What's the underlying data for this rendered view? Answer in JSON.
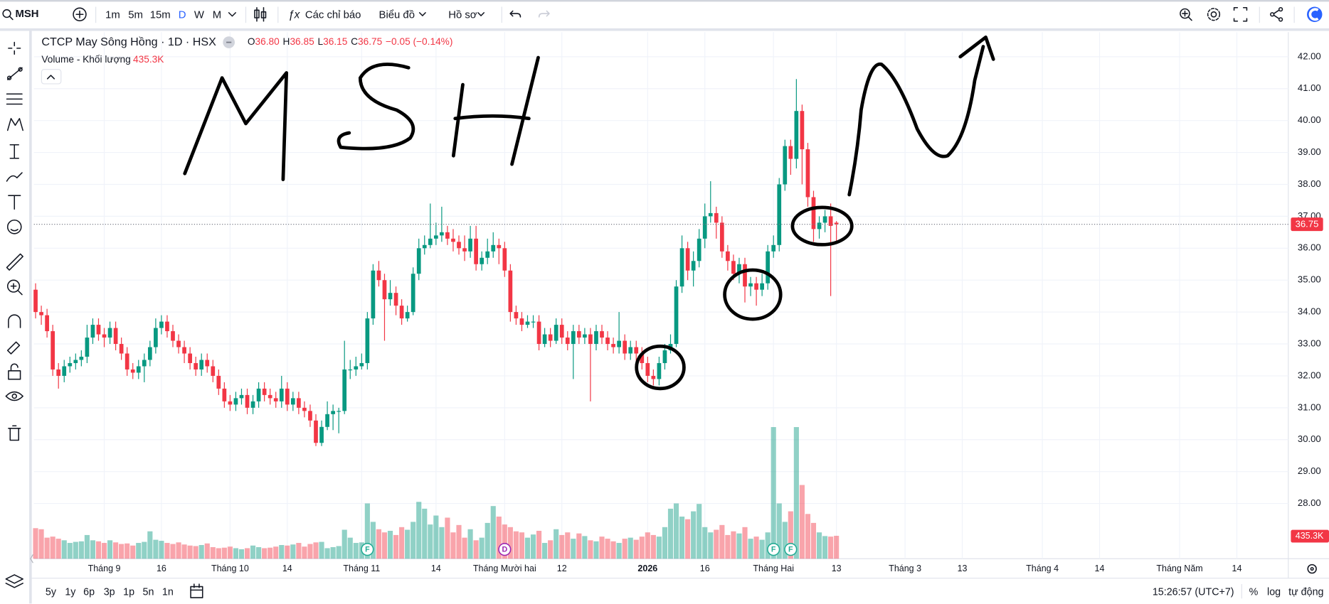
{
  "toolbar": {
    "symbol": "MSH",
    "intervals": [
      "1m",
      "5m",
      "15m",
      "D",
      "W",
      "M"
    ],
    "menus": [
      "Các chỉ báo",
      "Biểu đồ",
      "Hồ sơ"
    ]
  },
  "chart_data": {
    "type": "candlestick",
    "title": "CTCP May Sông Hồng · 1D · HSX",
    "ohlc_legend": [
      {
        "key": "O",
        "value": "36.80"
      },
      {
        "key": "H",
        "value": "36.85"
      },
      {
        "key": "L",
        "value": "36.15"
      },
      {
        "key": "C",
        "value": "36.75"
      }
    ],
    "change": "−0.05 (−0.14%)",
    "volume_title": "Volume - Khối lượng",
    "open": [
      34.7,
      34.0,
      33.9,
      33.4,
      32.2,
      32.0,
      32.3,
      32.4,
      32.5,
      32.6,
      33.2,
      33.6,
      33.3,
      33.2,
      33.5,
      33.0,
      32.7,
      32.2,
      32.1,
      32.3,
      32.5,
      32.9,
      33.5,
      33.7,
      33.4,
      33.1,
      32.9,
      32.7,
      32.4,
      32.2,
      32.5,
      32.3,
      32.0,
      31.6,
      31.2,
      31.1,
      31.3,
      31.4,
      31.0,
      31.2,
      31.6,
      31.4,
      31.3,
      31.2,
      31.6,
      31.1,
      31.3,
      31.0,
      30.9,
      30.6,
      29.9,
      30.4,
      30.8,
      30.9,
      30.9,
      32.2,
      32.2,
      32.3,
      32.4,
      33.8,
      35.3,
      35.0,
      34.4,
      34.6,
      34.2,
      33.8,
      34.0,
      35.2,
      36.0,
      36.1,
      36.3,
      36.4,
      36.5,
      36.3,
      36.2,
      36.0,
      35.9,
      36.3,
      35.5,
      35.7,
      35.9,
      36.1,
      36.0,
      35.3,
      34.0,
      33.8,
      33.6,
      33.7,
      33.7,
      33.0,
      33.3,
      33.1,
      33.6,
      33.2,
      33.0,
      33.4,
      33.2,
      33.3,
      33.0,
      33.4,
      33.2,
      33.0,
      32.9,
      33.1,
      32.7,
      32.9,
      32.7,
      32.4,
      32.0,
      31.9,
      32.4,
      32.8,
      33.0,
      34.8,
      36.0,
      35.3,
      35.6,
      36.3,
      37.0,
      37.1,
      36.8,
      35.9,
      35.6,
      35.2,
      35.5,
      34.8,
      34.9,
      34.7,
      34.9,
      35.9,
      36.1,
      38.0,
      39.2,
      38.8,
      40.3,
      39.1,
      37.6,
      36.6,
      36.8,
      37.0,
      36.8
    ],
    "high": [
      34.9,
      34.2,
      34.1,
      33.6,
      32.4,
      32.5,
      32.6,
      32.7,
      32.8,
      33.6,
      33.8,
      33.8,
      33.5,
      33.7,
      33.7,
      33.2,
      32.9,
      32.4,
      32.5,
      32.7,
      33.1,
      33.8,
      33.9,
      33.9,
      33.6,
      33.3,
      33.1,
      32.9,
      32.6,
      32.7,
      32.7,
      32.5,
      32.2,
      31.8,
      31.4,
      31.5,
      31.6,
      31.6,
      31.4,
      31.8,
      31.8,
      31.6,
      31.5,
      32.0,
      31.8,
      31.5,
      31.5,
      31.2,
      31.1,
      30.8,
      30.6,
      31.2,
      31.1,
      31.0,
      33.1,
      32.5,
      32.6,
      32.7,
      34.0,
      35.5,
      35.6,
      35.2,
      35.0,
      34.8,
      34.4,
      34.2,
      35.4,
      36.3,
      36.4,
      37.4,
      36.8,
      37.3,
      36.7,
      36.6,
      36.4,
      36.4,
      36.7,
      36.7,
      35.9,
      36.3,
      36.5,
      36.3,
      36.2,
      35.5,
      34.2,
      34.0,
      33.9,
      33.9,
      33.9,
      33.5,
      33.5,
      33.8,
      33.8,
      33.4,
      33.6,
      33.6,
      33.5,
      33.5,
      33.6,
      33.6,
      33.4,
      33.2,
      34.0,
      33.3,
      33.1,
      33.1,
      32.9,
      32.6,
      32.2,
      32.6,
      33.0,
      33.3,
      35.0,
      36.4,
      36.2,
      35.9,
      36.6,
      37.4,
      38.1,
      37.3,
      37.0,
      36.1,
      35.8,
      35.7,
      35.7,
      35.1,
      35.1,
      35.2,
      36.1,
      36.4,
      38.2,
      39.4,
      39.4,
      41.3,
      40.5,
      39.3,
      37.8,
      37.0,
      37.2,
      37.4,
      36.85
    ],
    "low": [
      33.8,
      33.6,
      33.2,
      32.0,
      31.6,
      31.8,
      32.1,
      32.2,
      32.3,
      32.4,
      33.0,
      33.1,
      32.9,
      33.0,
      32.8,
      32.5,
      32.0,
      31.9,
      31.9,
      31.8,
      32.3,
      32.7,
      33.3,
      33.2,
      32.9,
      32.7,
      32.4,
      32.2,
      32.0,
      32.0,
      32.1,
      31.8,
      31.4,
      31.0,
      30.9,
      30.9,
      31.1,
      30.8,
      30.8,
      31.0,
      31.2,
      31.1,
      31.0,
      31.0,
      30.9,
      30.9,
      30.8,
      30.7,
      30.4,
      29.8,
      29.8,
      30.3,
      30.3,
      30.2,
      30.8,
      31.9,
      32.0,
      32.2,
      32.2,
      33.6,
      34.8,
      33.1,
      34.2,
      33.9,
      33.6,
      33.7,
      33.9,
      35.0,
      35.8,
      36.0,
      36.1,
      36.2,
      36.1,
      35.9,
      35.8,
      35.6,
      35.7,
      35.3,
      35.3,
      35.5,
      35.7,
      35.5,
      35.1,
      33.7,
      33.6,
      33.4,
      33.5,
      33.5,
      32.8,
      32.9,
      32.9,
      33.0,
      33.0,
      32.8,
      31.9,
      33.0,
      33.0,
      31.2,
      32.8,
      33.0,
      32.8,
      32.7,
      32.7,
      32.5,
      32.5,
      32.4,
      32.2,
      31.8,
      31.7,
      31.7,
      32.2,
      32.7,
      32.9,
      34.6,
      35.0,
      34.8,
      35.4,
      36.0,
      36.8,
      36.3,
      35.7,
      35.3,
      35.0,
      34.9,
      34.3,
      34.5,
      34.2,
      34.5,
      34.7,
      35.7,
      35.9,
      37.8,
      38.3,
      38.5,
      38.0,
      37.3,
      36.2,
      36.3,
      36.5,
      34.5,
      36.15
    ],
    "close": [
      34.0,
      33.9,
      33.4,
      32.2,
      32.0,
      32.3,
      32.4,
      32.5,
      32.6,
      33.2,
      33.6,
      33.3,
      33.2,
      33.5,
      33.0,
      32.7,
      32.2,
      32.1,
      32.3,
      32.5,
      32.9,
      33.5,
      33.7,
      33.4,
      33.1,
      32.9,
      32.7,
      32.4,
      32.2,
      32.5,
      32.3,
      32.0,
      31.6,
      31.2,
      31.1,
      31.3,
      31.4,
      31.0,
      31.2,
      31.6,
      31.4,
      31.3,
      31.2,
      31.6,
      31.1,
      31.3,
      31.0,
      30.9,
      30.6,
      29.9,
      30.4,
      30.8,
      30.9,
      30.9,
      32.2,
      32.2,
      32.3,
      32.4,
      33.8,
      35.3,
      35.0,
      34.4,
      34.6,
      34.2,
      33.8,
      34.0,
      35.2,
      36.0,
      36.1,
      36.3,
      36.4,
      36.5,
      36.3,
      36.2,
      36.0,
      35.9,
      36.3,
      35.5,
      35.7,
      35.9,
      36.1,
      36.0,
      35.3,
      34.0,
      33.8,
      33.6,
      33.7,
      33.7,
      33.0,
      33.3,
      33.1,
      33.6,
      33.2,
      33.0,
      33.4,
      33.2,
      33.3,
      33.0,
      33.4,
      33.2,
      33.0,
      32.9,
      33.1,
      32.7,
      32.9,
      32.7,
      32.4,
      32.0,
      31.9,
      32.4,
      32.8,
      33.0,
      34.8,
      36.0,
      35.3,
      35.6,
      36.3,
      37.0,
      37.1,
      36.8,
      35.9,
      35.6,
      35.2,
      35.5,
      34.8,
      34.9,
      34.7,
      34.9,
      35.9,
      36.1,
      38.0,
      39.2,
      38.8,
      40.3,
      39.1,
      37.6,
      36.6,
      36.8,
      37.0,
      36.7,
      36.75
    ],
    "up_color": "#089981",
    "down_color": "#f23645",
    "volume": {
      "values": [
        580000,
        560000,
        400000,
        420000,
        380000,
        350000,
        300000,
        320000,
        330000,
        450000,
        350000,
        330000,
        300000,
        350000,
        310000,
        280000,
        290000,
        250000,
        300000,
        320000,
        520000,
        360000,
        340000,
        300000,
        280000,
        310000,
        270000,
        250000,
        240000,
        260000,
        290000,
        220000,
        200000,
        210000,
        230000,
        200000,
        180000,
        200000,
        250000,
        220000,
        200000,
        210000,
        230000,
        260000,
        250000,
        270000,
        300000,
        230000,
        280000,
        310000,
        320000,
        200000,
        220000,
        240000,
        550000,
        400000,
        300000,
        310000,
        1050000,
        700000,
        560000,
        500000,
        530000,
        450000,
        600000,
        550000,
        700000,
        1080000,
        950000,
        650000,
        820000,
        600000,
        780000,
        500000,
        640000,
        400000,
        560000,
        350000,
        400000,
        680000,
        1000000,
        800000,
        650000,
        600000,
        520000,
        500000,
        400000,
        460000,
        530000,
        300000,
        350000,
        560000,
        450000,
        500000,
        380000,
        480000,
        430000,
        350000,
        330000,
        420000,
        380000,
        330000,
        300000,
        380000,
        400000,
        360000,
        420000,
        500000,
        450000,
        420000,
        600000,
        950000,
        1050000,
        800000,
        750000,
        900000,
        1040000,
        600000,
        500000,
        550000,
        640000,
        450000,
        520000,
        480000,
        600000,
        380000,
        420000,
        360000,
        500000,
        2500000,
        1050000,
        700000,
        900000,
        2500000,
        1400000,
        850000,
        680000,
        500000,
        430000,
        420000,
        435300
      ],
      "last_label": "435.3K",
      "ylim": [
        0,
        10000000
      ]
    },
    "xlim": [
      0,
      219
    ],
    "xticks": [
      {
        "value": 12,
        "label": "Tháng 9"
      },
      {
        "value": 22,
        "label": "16"
      },
      {
        "value": 34,
        "label": "Tháng 10"
      },
      {
        "value": 44,
        "label": "14"
      },
      {
        "value": 57,
        "label": "Tháng 11"
      },
      {
        "value": 70,
        "label": "14"
      },
      {
        "value": 82,
        "label": "Tháng Mười hai"
      },
      {
        "value": 92,
        "label": "12"
      },
      {
        "value": 107,
        "label": "2026"
      },
      {
        "value": 117,
        "label": "16"
      },
      {
        "value": 129,
        "label": "Tháng Hai"
      },
      {
        "value": 140,
        "label": "13"
      },
      {
        "value": 152,
        "label": "Tháng 3"
      },
      {
        "value": 162,
        "label": "13"
      },
      {
        "value": 176,
        "label": "Tháng 4"
      },
      {
        "value": 186,
        "label": "14"
      },
      {
        "value": 200,
        "label": "Tháng Năm"
      },
      {
        "value": 210,
        "label": "14"
      }
    ],
    "ylim": [
      26.27,
      42.77
    ],
    "yticks": [
      {
        "value": 28,
        "label": "28.00"
      },
      {
        "value": 29,
        "label": "29.00"
      },
      {
        "value": 30,
        "label": "30.00"
      },
      {
        "value": 31,
        "label": "31.00"
      },
      {
        "value": 32,
        "label": "32.00"
      },
      {
        "value": 33,
        "label": "33.00"
      },
      {
        "value": 34,
        "label": "34.00"
      },
      {
        "value": 35,
        "label": "35.00"
      },
      {
        "value": 36,
        "label": "36.00"
      },
      {
        "value": 37,
        "label": "37.00"
      },
      {
        "value": 38,
        "label": "38.00"
      },
      {
        "value": 39,
        "label": "39.00"
      },
      {
        "value": 40,
        "label": "40.00"
      },
      {
        "value": 41,
        "label": "41.00"
      },
      {
        "value": 42,
        "label": "42.00"
      }
    ],
    "events": [
      {
        "label": "F",
        "index": 58
      },
      {
        "label": "D",
        "index": 82
      },
      {
        "label": "F",
        "index": 129
      },
      {
        "label": "F",
        "index": 132
      }
    ],
    "grid": true
  },
  "bottom_bar": {
    "ranges": [
      "5y",
      "1y",
      "6p",
      "3p",
      "1p",
      "5n",
      "1n"
    ],
    "clock": "15:26:57 (UTC+7)",
    "options": [
      "%",
      "log",
      "tự động"
    ]
  }
}
